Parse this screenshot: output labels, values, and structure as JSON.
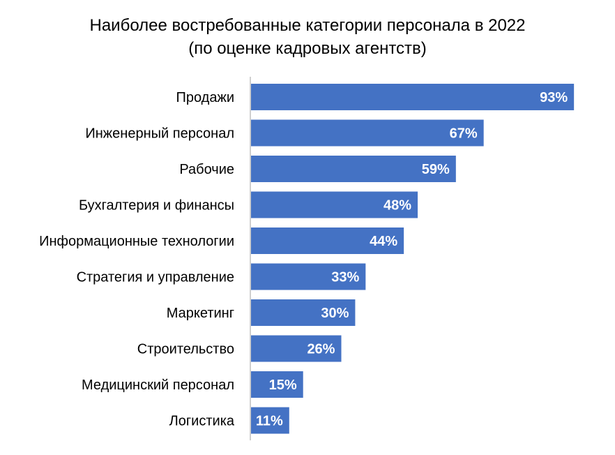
{
  "chart_data": {
    "type": "bar",
    "orientation": "horizontal",
    "title": "Наиболее востребованные категории персонала в 2022",
    "subtitle": "(по оценке кадровых агентств)",
    "categories": [
      "Продажи",
      "Инженерный персонал",
      "Рабочие",
      "Бухгалтерия и финансы",
      "Информационные технологии",
      "Стратегия и управление",
      "Маркетинг",
      "Строительство",
      "Медицинский персонал",
      "Логистика"
    ],
    "values": [
      93,
      67,
      59,
      48,
      44,
      33,
      30,
      26,
      15,
      11
    ],
    "data_labels": [
      "93%",
      "67%",
      "59%",
      "48%",
      "44%",
      "33%",
      "30%",
      "26%",
      "15%",
      "11%"
    ],
    "unit": "%",
    "xlim": [
      0,
      100
    ],
    "grid": false,
    "legend": "none",
    "bar_color": "#4472C4",
    "label_color": "#FFFFFF"
  }
}
